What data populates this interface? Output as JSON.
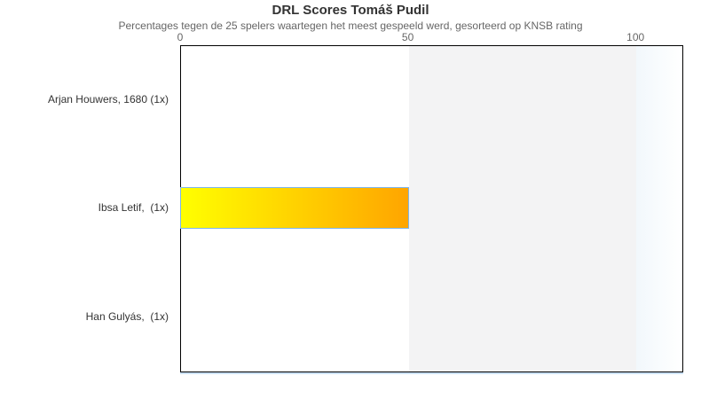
{
  "chart_data": {
    "type": "bar",
    "orientation": "horizontal",
    "title": "DRL Scores Tomáš Pudil",
    "subtitle": "Percentages tegen de 25 spelers waartegen het meest gespeeld werd, gesorteerd op KNSB rating",
    "categories": [
      "Arjan Houwers, 1680 (1x)",
      "Ibsa Letif,  (1x)",
      "Han Gulyás,  (1x)"
    ],
    "values": [
      0,
      50,
      0
    ],
    "x_ticks": [
      0,
      50,
      100
    ],
    "xlabel": "",
    "ylabel": "",
    "axis_position": "top",
    "axis_max": 110.1,
    "grid": false,
    "legend": false,
    "plot_bands": [
      {
        "from": 50,
        "to": 100,
        "color": "#f3f3f4"
      }
    ],
    "edge_band": {
      "from": 100,
      "to": 110.1,
      "gradient": [
        "#f2f8fc",
        "#ffffff"
      ]
    },
    "colors": {
      "bar_gradient_start": "#ffff00",
      "bar_gradient_end": "#ffa500",
      "bar_border": "#7cb5ec",
      "title_text": "#333333",
      "subtitle_text": "#666666",
      "tick_text": "#666666",
      "category_text": "#333333",
      "plot_border": "#000000",
      "bottom_glow": "#b9def0"
    }
  }
}
